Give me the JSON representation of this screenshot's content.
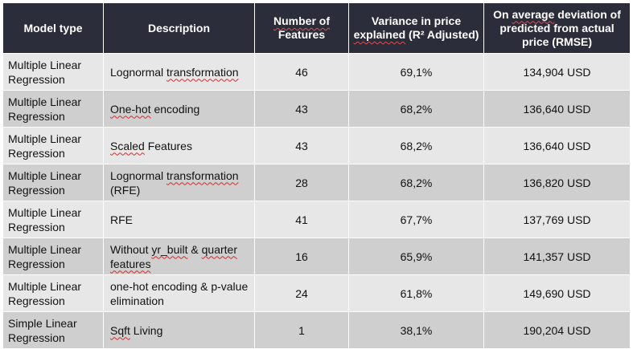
{
  "table": {
    "headers": {
      "model_type": "Model type",
      "description": "Description",
      "num_features": "Number of Features",
      "variance": "Variance in price explained (R² Adjusted)",
      "deviation": "On average deviation of predicted from actual price (RMSE)"
    },
    "rows": [
      {
        "model": "Multiple Linear Regression",
        "description": "Lognormal transformation",
        "features": "46",
        "r2": "69,1%",
        "rmse": "134,904 USD"
      },
      {
        "model": "Multiple Linear Regression",
        "description": "One-hot encoding",
        "features": "43",
        "r2": "68,2%",
        "rmse": "136,640 USD"
      },
      {
        "model": "Multiple Linear Regression",
        "description": "Scaled Features",
        "features": "43",
        "r2": "68,2%",
        "rmse": "136,640 USD"
      },
      {
        "model": "Multiple Linear Regression",
        "description": "Lognormal transformation (RFE)",
        "features": "28",
        "r2": "68,2%",
        "rmse": "136,820 USD"
      },
      {
        "model": "Multiple Linear Regression",
        "description": "RFE",
        "features": "41",
        "r2": "67,7%",
        "rmse": "137,769 USD"
      },
      {
        "model": "Multiple Linear Regression",
        "description": "Without yr_built & quarter features",
        "features": "16",
        "r2": "65,9%",
        "rmse": "141,357 USD"
      },
      {
        "model": "Multiple Linear Regression",
        "description": "one-hot encoding & p-value elimination",
        "features": "24",
        "r2": "61,8%",
        "rmse": "149,690 USD"
      },
      {
        "model": "Simple Linear Regression",
        "description": "Sqft Living",
        "features": "1",
        "r2": "38,1%",
        "rmse": "190,204 USD"
      }
    ]
  },
  "colors": {
    "header_bg": "#2b2d3a",
    "row_light": "#e7e7e7",
    "row_dark": "#cfcfcf",
    "spellcheck": "#d62a2a"
  }
}
